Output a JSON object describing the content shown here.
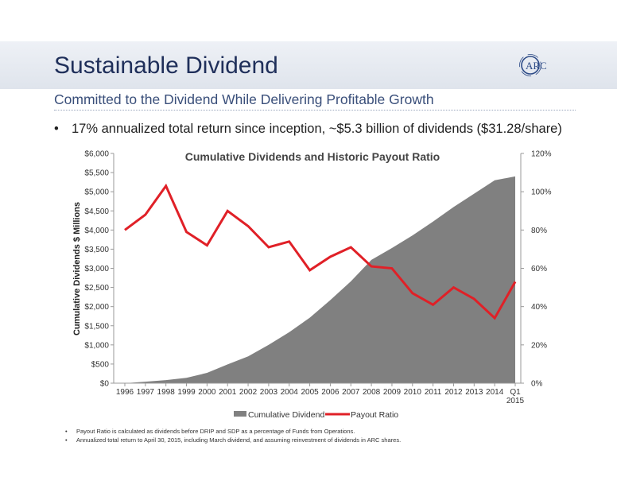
{
  "slide": {
    "title": "Sustainable Dividend",
    "subtitle": "Committed to the Dividend While Delivering Profitable Growth",
    "logo_text": "ARC",
    "bullet": "17% annualized total return since inception, ~$5.3 billion of dividends ($31.28/share)"
  },
  "footnotes": [
    "Payout Ratio is calculated as dividends before DRIP and SDP as a percentage of Funds from Operations.",
    "Annualized total return to April 30, 2015, including March dividend, and assuming reinvestment of dividends in ARC shares."
  ],
  "chart_data": {
    "type": "area",
    "title": "Cumulative Dividends and Historic Payout Ratio",
    "ylabel": "Cumulative Dividends $ Millions",
    "categories": [
      "1996",
      "1997",
      "1998",
      "1999",
      "2000",
      "2001",
      "2002",
      "2003",
      "2004",
      "2005",
      "2006",
      "2007",
      "2008",
      "2009",
      "2010",
      "2011",
      "2012",
      "2013",
      "2014",
      "Q1 2015"
    ],
    "y_left_ticks": [
      "$0",
      "$500",
      "$1,000",
      "$1,500",
      "$2,000",
      "$2,500",
      "$3,000",
      "$3,500",
      "$4,000",
      "$4,500",
      "$5,000",
      "$5,500",
      "$6,000"
    ],
    "y_right_ticks": [
      "0%",
      "20%",
      "40%",
      "60%",
      "80%",
      "100%",
      "120%"
    ],
    "ylim_left": [
      0,
      6000
    ],
    "ylim_right": [
      0,
      120
    ],
    "grid": false,
    "legend_position": "bottom",
    "series": [
      {
        "name": "Cumulative Dividend",
        "type": "area",
        "axis": "left",
        "color": "#808080",
        "values": [
          0,
          40,
          80,
          140,
          270,
          490,
          700,
          1000,
          1330,
          1710,
          2170,
          2660,
          3220,
          3530,
          3860,
          4220,
          4600,
          4950,
          5300,
          5400
        ]
      },
      {
        "name": "Payout Ratio",
        "type": "line",
        "axis": "right",
        "color": "#e02027",
        "values": [
          80,
          88,
          103,
          79,
          72,
          90,
          82,
          71,
          74,
          59,
          66,
          71,
          61,
          60,
          47,
          41,
          50,
          44,
          34,
          53
        ]
      }
    ]
  }
}
